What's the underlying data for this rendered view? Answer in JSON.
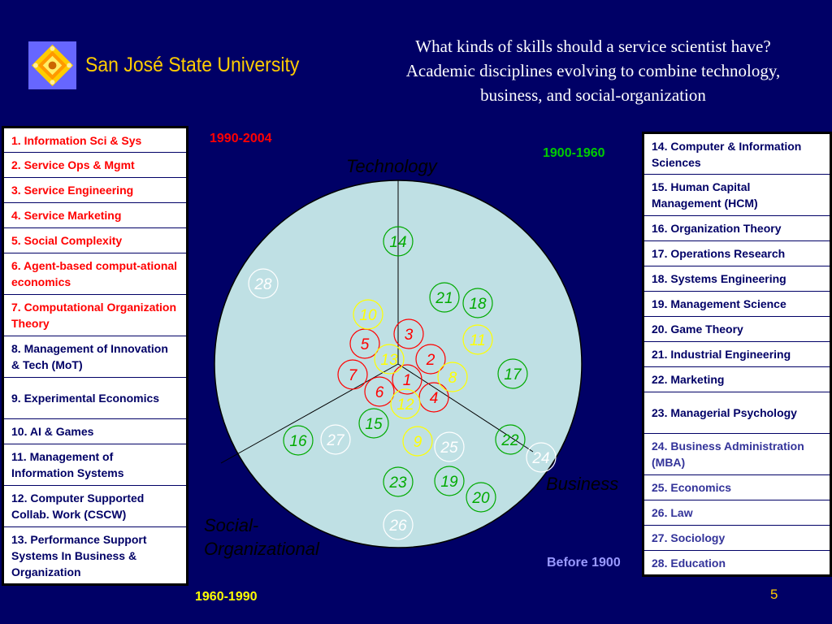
{
  "header": {
    "university": "San José State University",
    "title_lines": [
      "What kinds of skills should a service scientist have?",
      "Academic disciplines evolving to combine technology,",
      "business, and social-organization"
    ]
  },
  "periods": {
    "p1990_2004": "1990-2004",
    "p1900_1960": "1900-1960",
    "p1960_1990": "1960-1990",
    "before_1900": "Before 1900"
  },
  "axes": {
    "technology": "Technology",
    "business": "Business",
    "social_line1": "Social-",
    "social_line2": "Organizational"
  },
  "page_number": "5",
  "colors": {
    "background": "#000066",
    "circle": "#bfe0e4",
    "red": "#ff0000",
    "yellow": "#ffff00",
    "green": "#00aa00",
    "white": "#ffffff",
    "gold": "#ffcc00"
  },
  "left_table": [
    {
      "text": "1. Information Sci & Sys",
      "style": "red"
    },
    {
      "text": "2. Service Ops & Mgmt",
      "style": "red"
    },
    {
      "text": "3. Service Engineering",
      "style": "red"
    },
    {
      "text": "4. Service Marketing",
      "style": "red"
    },
    {
      "text": "5. Social Complexity",
      "style": "red"
    },
    {
      "text": "6. Agent-based comput-ational economics",
      "style": "red"
    },
    {
      "text": "7. Computational Organization Theory",
      "style": "red"
    },
    {
      "text": "8. Management of Innovation & Tech (MoT)",
      "style": "black"
    },
    {
      "text": "9. Experimental Economics",
      "style": "black"
    },
    {
      "text": "10. AI & Games",
      "style": "black"
    },
    {
      "text": "11. Management of Information Systems",
      "style": "black"
    },
    {
      "text": "12. Computer Supported Collab.  Work (CSCW)",
      "style": "black"
    },
    {
      "text": "13. Performance Support Systems In Business & Organization",
      "style": "black"
    }
  ],
  "right_table": [
    {
      "text": "14. Computer & Information Sciences",
      "style": "black"
    },
    {
      "text": "15. Human Capital Management (HCM)",
      "style": "black"
    },
    {
      "text": "16. Organization Theory",
      "style": "black"
    },
    {
      "text": "17. Operations Research",
      "style": "black"
    },
    {
      "text": "18. Systems Engineering",
      "style": "black"
    },
    {
      "text": "19. Management Science",
      "style": "black"
    },
    {
      "text": "20. Game Theory",
      "style": "black"
    },
    {
      "text": "21. Industrial Engineering",
      "style": "black"
    },
    {
      "text": "22. Marketing",
      "style": "black"
    },
    {
      "text": "23. Managerial Psychology",
      "style": "black"
    },
    {
      "text": "24. Business Administration (MBA)",
      "style": "blue"
    },
    {
      "text": "25. Economics",
      "style": "blue"
    },
    {
      "text": "26. Law",
      "style": "blue"
    },
    {
      "text": "27. Sociology",
      "style": "blue"
    },
    {
      "text": "28. Education",
      "style": "blue"
    }
  ],
  "nodes": [
    {
      "label": "1",
      "era": "red"
    },
    {
      "label": "2",
      "era": "red"
    },
    {
      "label": "3",
      "era": "red"
    },
    {
      "label": "4",
      "era": "red"
    },
    {
      "label": "5",
      "era": "red"
    },
    {
      "label": "6",
      "era": "red"
    },
    {
      "label": "7",
      "era": "red"
    },
    {
      "label": "8",
      "era": "yellow"
    },
    {
      "label": "9",
      "era": "yellow"
    },
    {
      "label": "10",
      "era": "yellow"
    },
    {
      "label": "11",
      "era": "yellow"
    },
    {
      "label": "12",
      "era": "yellow"
    },
    {
      "label": "13",
      "era": "yellow"
    },
    {
      "label": "14",
      "era": "green"
    },
    {
      "label": "15",
      "era": "green"
    },
    {
      "label": "16",
      "era": "green"
    },
    {
      "label": "17",
      "era": "green"
    },
    {
      "label": "18",
      "era": "green"
    },
    {
      "label": "19",
      "era": "green"
    },
    {
      "label": "20",
      "era": "green"
    },
    {
      "label": "21",
      "era": "green"
    },
    {
      "label": "22",
      "era": "green"
    },
    {
      "label": "23",
      "era": "green"
    },
    {
      "label": "24",
      "era": "white"
    },
    {
      "label": "25",
      "era": "white"
    },
    {
      "label": "26",
      "era": "white"
    },
    {
      "label": "27",
      "era": "white"
    },
    {
      "label": "28",
      "era": "white"
    }
  ]
}
